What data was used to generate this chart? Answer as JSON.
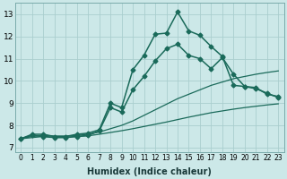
{
  "xlabel": "Humidex (Indice chaleur)",
  "background_color": "#cce8e8",
  "grid_color": "#aacece",
  "line_color": "#1a6a5a",
  "xlim": [
    -0.5,
    23.5
  ],
  "ylim": [
    6.8,
    13.5
  ],
  "yticks": [
    7,
    8,
    9,
    10,
    11,
    12,
    13
  ],
  "xticks": [
    0,
    1,
    2,
    3,
    4,
    5,
    6,
    7,
    8,
    9,
    10,
    11,
    12,
    13,
    14,
    15,
    16,
    17,
    18,
    19,
    20,
    21,
    22,
    23
  ],
  "lines": [
    {
      "x": [
        0,
        1,
        2,
        3,
        4,
        5,
        6,
        7,
        8,
        9,
        10,
        11,
        12,
        13,
        14,
        15,
        16,
        17,
        18,
        19,
        20,
        21,
        22,
        23
      ],
      "y": [
        7.4,
        7.6,
        7.6,
        7.5,
        7.5,
        7.6,
        7.65,
        7.8,
        9.0,
        8.8,
        10.5,
        11.15,
        12.1,
        12.15,
        13.1,
        12.25,
        12.05,
        11.55,
        11.1,
        9.8,
        9.75,
        9.7,
        9.4,
        9.3
      ],
      "marker": "D",
      "markersize": 2.5,
      "linewidth": 1.1
    },
    {
      "x": [
        0,
        1,
        2,
        3,
        4,
        5,
        6,
        7,
        8,
        9,
        10,
        11,
        12,
        13,
        14,
        15,
        16,
        17,
        18,
        19,
        20,
        21,
        22,
        23
      ],
      "y": [
        7.4,
        7.55,
        7.5,
        7.45,
        7.45,
        7.5,
        7.55,
        7.75,
        8.8,
        8.6,
        9.6,
        10.2,
        10.9,
        11.45,
        11.65,
        11.15,
        11.0,
        10.55,
        11.05,
        10.3,
        9.75,
        9.65,
        9.45,
        9.25
      ],
      "marker": "D",
      "markersize": 2.5,
      "linewidth": 1.1
    },
    {
      "x": [
        0,
        1,
        2,
        3,
        4,
        5,
        6,
        7,
        8,
        9,
        10,
        11,
        12,
        13,
        14,
        15,
        16,
        17,
        18,
        19,
        20,
        21,
        22,
        23
      ],
      "y": [
        7.4,
        7.5,
        7.55,
        7.52,
        7.52,
        7.55,
        7.6,
        7.7,
        7.85,
        8.0,
        8.2,
        8.45,
        8.7,
        8.95,
        9.2,
        9.4,
        9.6,
        9.8,
        9.95,
        10.1,
        10.2,
        10.3,
        10.38,
        10.45
      ],
      "marker": null,
      "linewidth": 0.9
    },
    {
      "x": [
        0,
        1,
        2,
        3,
        4,
        5,
        6,
        7,
        8,
        9,
        10,
        11,
        12,
        13,
        14,
        15,
        16,
        17,
        18,
        19,
        20,
        21,
        22,
        23
      ],
      "y": [
        7.4,
        7.45,
        7.5,
        7.47,
        7.47,
        7.5,
        7.53,
        7.6,
        7.68,
        7.76,
        7.85,
        7.95,
        8.05,
        8.15,
        8.26,
        8.37,
        8.47,
        8.57,
        8.65,
        8.73,
        8.8,
        8.86,
        8.92,
        8.97
      ],
      "marker": null,
      "linewidth": 0.9
    }
  ]
}
